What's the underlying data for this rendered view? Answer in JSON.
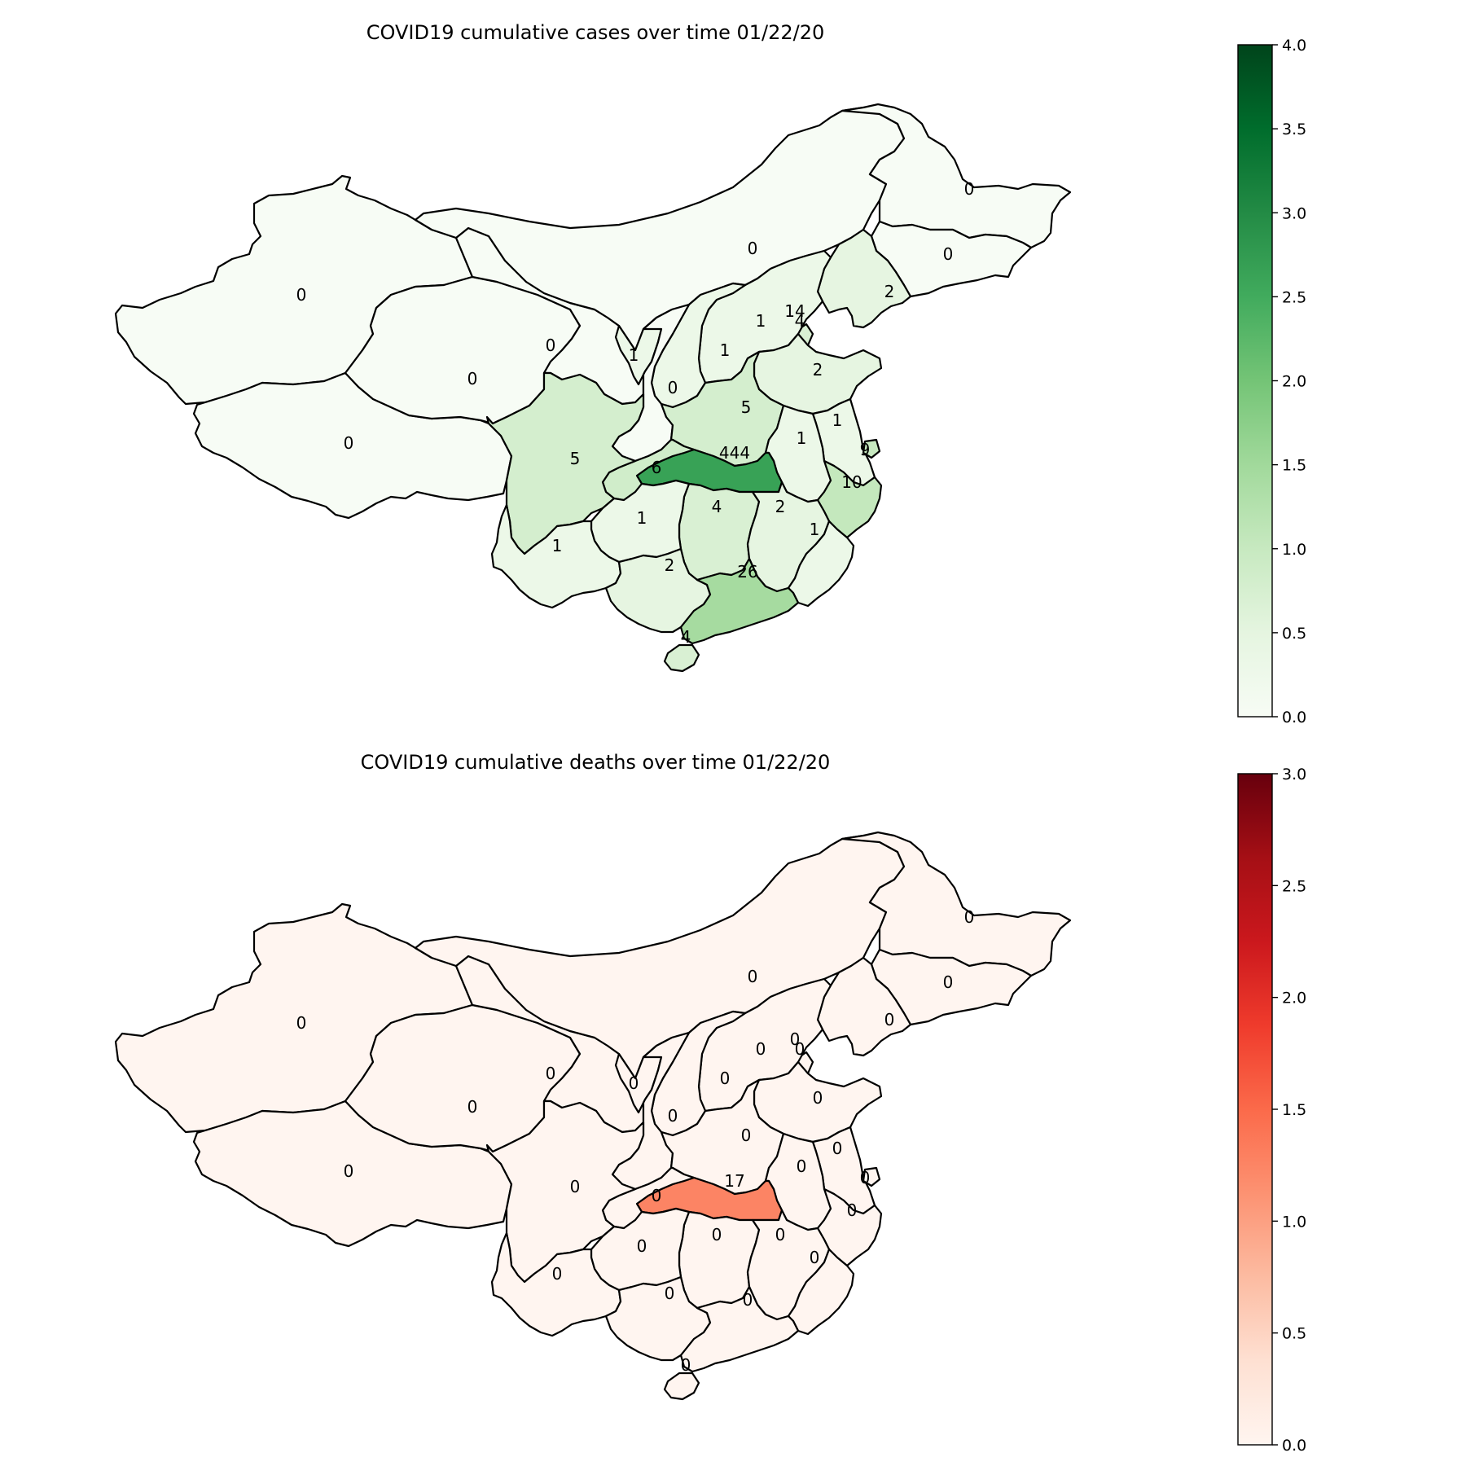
{
  "figure": {
    "title_cases": "COVID19 cumulative cases over time 01/22/20",
    "title_deaths": "COVID19 cumulative deaths over time 01/22/20"
  },
  "colors": {
    "cases_scale": [
      "#f7fcf5",
      "#e5f5e0",
      "#c7e9c0",
      "#a1d99b",
      "#74c476",
      "#41ab5d",
      "#238b45",
      "#006d2c",
      "#00441b"
    ],
    "deaths_scale": [
      "#fff5f0",
      "#fee0d2",
      "#fcbba1",
      "#fc9272",
      "#fb6a4a",
      "#ef3b2c",
      "#cb181d",
      "#a50f15",
      "#67000d"
    ],
    "outline": "#000000"
  },
  "chart_data": [
    {
      "type": "choropleth",
      "title": "COVID19 cumulative cases over time 01/22/20",
      "color_scale": "log10(1 + value)",
      "colorbar": {
        "range": [
          0,
          4.0
        ],
        "ticks": [
          "0.0",
          "0.5",
          "1.0",
          "1.5",
          "2.0",
          "2.5",
          "3.0",
          "3.5",
          "4.0"
        ]
      },
      "regions": [
        {
          "name": "Xinjiang",
          "value": 0
        },
        {
          "name": "Tibet",
          "value": 0
        },
        {
          "name": "Qinghai",
          "value": 0
        },
        {
          "name": "Gansu",
          "value": 0
        },
        {
          "name": "Inner Mongolia",
          "value": 0
        },
        {
          "name": "Heilongjiang",
          "value": 0
        },
        {
          "name": "Jilin",
          "value": 0
        },
        {
          "name": "Liaoning",
          "value": 2
        },
        {
          "name": "Beijing",
          "value": 14
        },
        {
          "name": "Tianjin",
          "value": 4
        },
        {
          "name": "Hebei",
          "value": 1
        },
        {
          "name": "Shanxi",
          "value": 1
        },
        {
          "name": "Ningxia",
          "value": 1
        },
        {
          "name": "Shaanxi",
          "value": 0
        },
        {
          "name": "Shandong",
          "value": 2
        },
        {
          "name": "Henan",
          "value": 5
        },
        {
          "name": "Jiangsu",
          "value": 1
        },
        {
          "name": "Anhui",
          "value": 1
        },
        {
          "name": "Shanghai",
          "value": 9
        },
        {
          "name": "Hubei",
          "value": 444
        },
        {
          "name": "Chongqing",
          "value": 6
        },
        {
          "name": "Sichuan",
          "value": 5
        },
        {
          "name": "Zhejiang",
          "value": 10
        },
        {
          "name": "Hunan",
          "value": 4
        },
        {
          "name": "Jiangxi",
          "value": 2
        },
        {
          "name": "Fujian",
          "value": 1
        },
        {
          "name": "Guizhou",
          "value": 1
        },
        {
          "name": "Yunnan",
          "value": 1
        },
        {
          "name": "Guangxi",
          "value": 2
        },
        {
          "name": "Guangdong",
          "value": 26
        },
        {
          "name": "Hainan",
          "value": 4
        }
      ]
    },
    {
      "type": "choropleth",
      "title": "COVID19 cumulative deaths over time 01/22/20",
      "color_scale": "log10(1 + value)",
      "colorbar": {
        "range": [
          0,
          3.0
        ],
        "ticks": [
          "0.0",
          "0.5",
          "1.0",
          "1.5",
          "2.0",
          "2.5",
          "3.0"
        ]
      },
      "regions": [
        {
          "name": "Xinjiang",
          "value": 0
        },
        {
          "name": "Tibet",
          "value": 0
        },
        {
          "name": "Qinghai",
          "value": 0
        },
        {
          "name": "Gansu",
          "value": 0
        },
        {
          "name": "Inner Mongolia",
          "value": 0
        },
        {
          "name": "Heilongjiang",
          "value": 0
        },
        {
          "name": "Jilin",
          "value": 0
        },
        {
          "name": "Liaoning",
          "value": 0
        },
        {
          "name": "Beijing",
          "value": 0
        },
        {
          "name": "Tianjin",
          "value": 0
        },
        {
          "name": "Hebei",
          "value": 0
        },
        {
          "name": "Shanxi",
          "value": 0
        },
        {
          "name": "Ningxia",
          "value": 0
        },
        {
          "name": "Shaanxi",
          "value": 0
        },
        {
          "name": "Shandong",
          "value": 0
        },
        {
          "name": "Henan",
          "value": 0
        },
        {
          "name": "Jiangsu",
          "value": 0
        },
        {
          "name": "Anhui",
          "value": 0
        },
        {
          "name": "Shanghai",
          "value": 0
        },
        {
          "name": "Hubei",
          "value": 17
        },
        {
          "name": "Chongqing",
          "value": 0
        },
        {
          "name": "Sichuan",
          "value": 0
        },
        {
          "name": "Zhejiang",
          "value": 0
        },
        {
          "name": "Hunan",
          "value": 0
        },
        {
          "name": "Jiangxi",
          "value": 0
        },
        {
          "name": "Fujian",
          "value": 0
        },
        {
          "name": "Guizhou",
          "value": 0
        },
        {
          "name": "Yunnan",
          "value": 0
        },
        {
          "name": "Guangxi",
          "value": 0
        },
        {
          "name": "Guangdong",
          "value": 0
        },
        {
          "name": "Hainan",
          "value": 0
        }
      ]
    }
  ]
}
